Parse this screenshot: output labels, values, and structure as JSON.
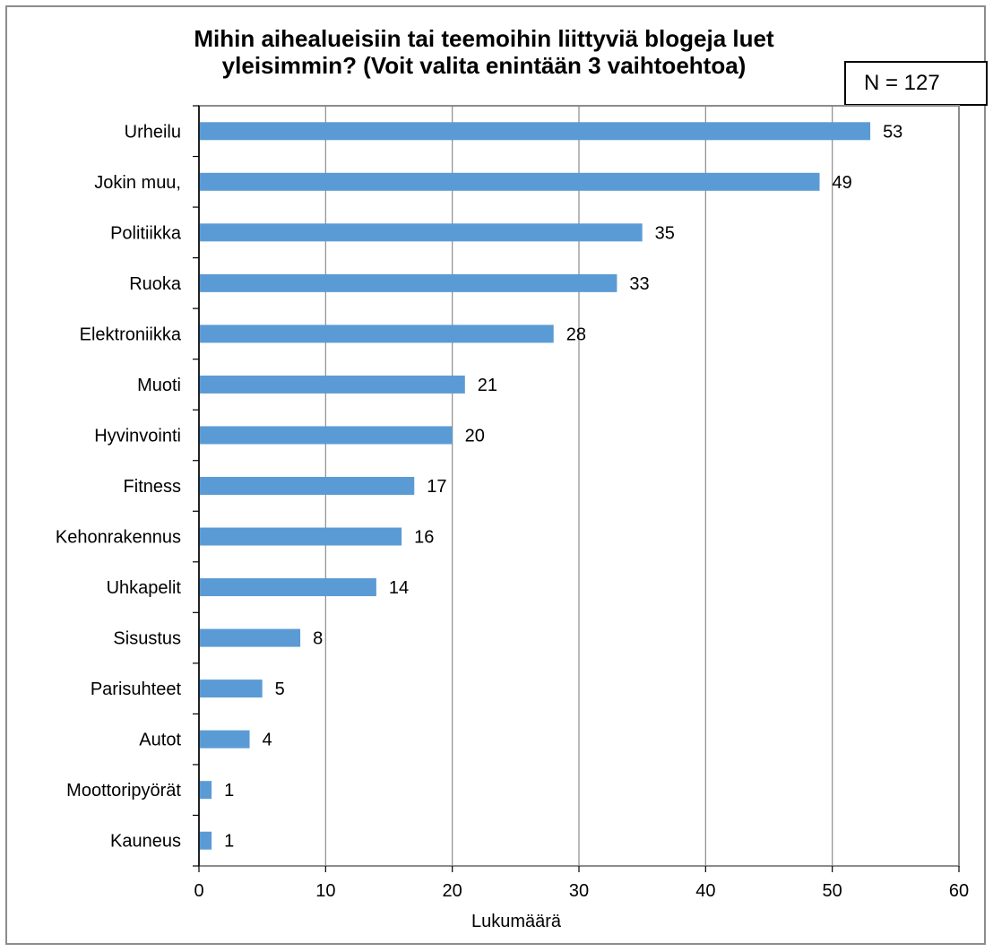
{
  "chart_data": {
    "type": "bar",
    "orientation": "horizontal",
    "title": "Mihin aihealueisiin tai teemoihin liittyviä blogeja luet yleisimmin? (Voit valita enintään 3 vaihtoehtoa)",
    "annotation": "N = 127",
    "categories": [
      "Urheilu",
      "Jokin muu,",
      "Politiikka",
      "Ruoka",
      "Elektroniikka",
      "Muoti",
      "Hyvinvointi",
      "Fitness",
      "Kehonrakennus",
      "Uhkapelit",
      "Sisustus",
      "Parisuhteet",
      "Autot",
      "Moottoripyörät",
      "Kauneus"
    ],
    "values": [
      53,
      49,
      35,
      33,
      28,
      21,
      20,
      17,
      16,
      14,
      8,
      5,
      4,
      1,
      1
    ],
    "xlabel": "Lukumäärä",
    "ylabel": "",
    "xlim": [
      0,
      60
    ],
    "xticks": [
      0,
      10,
      20,
      30,
      40,
      50,
      60
    ],
    "grid": true,
    "legend": "none",
    "bar_color": "#5b9bd5"
  }
}
